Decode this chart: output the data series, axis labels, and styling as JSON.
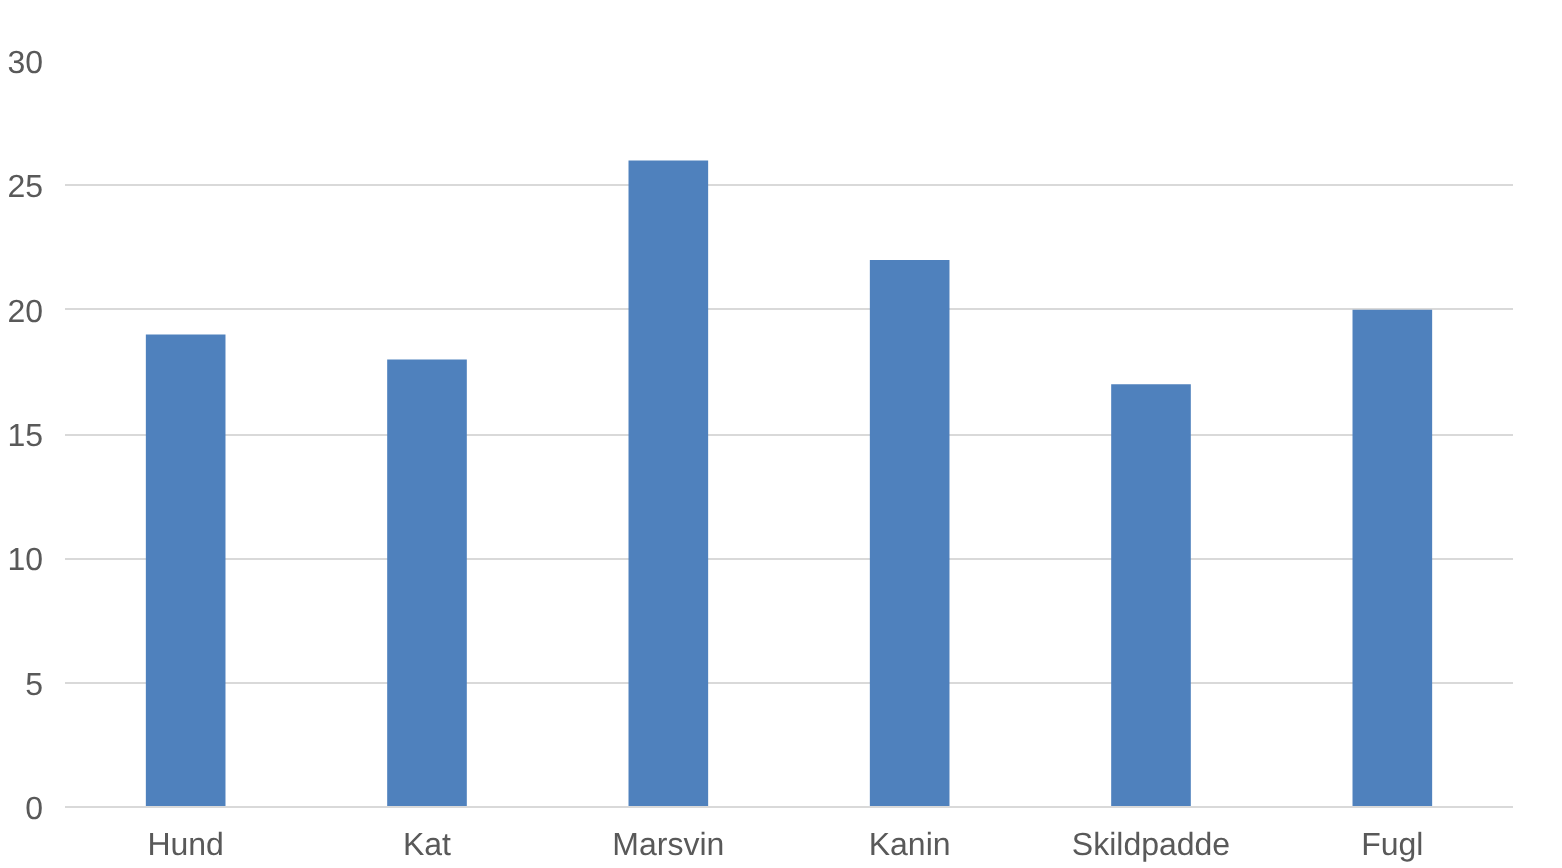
{
  "chart_data": {
    "type": "bar",
    "categories": [
      "Hund",
      "Kat",
      "Marsvin",
      "Kanin",
      "Skildpadde",
      "Fugl"
    ],
    "values": [
      19,
      18,
      26,
      22,
      17,
      20
    ],
    "color": "#4f81bd",
    "ylim": [
      0,
      30
    ],
    "yticks": [
      0,
      5,
      10,
      15,
      20,
      25,
      30
    ],
    "grid": "y"
  }
}
